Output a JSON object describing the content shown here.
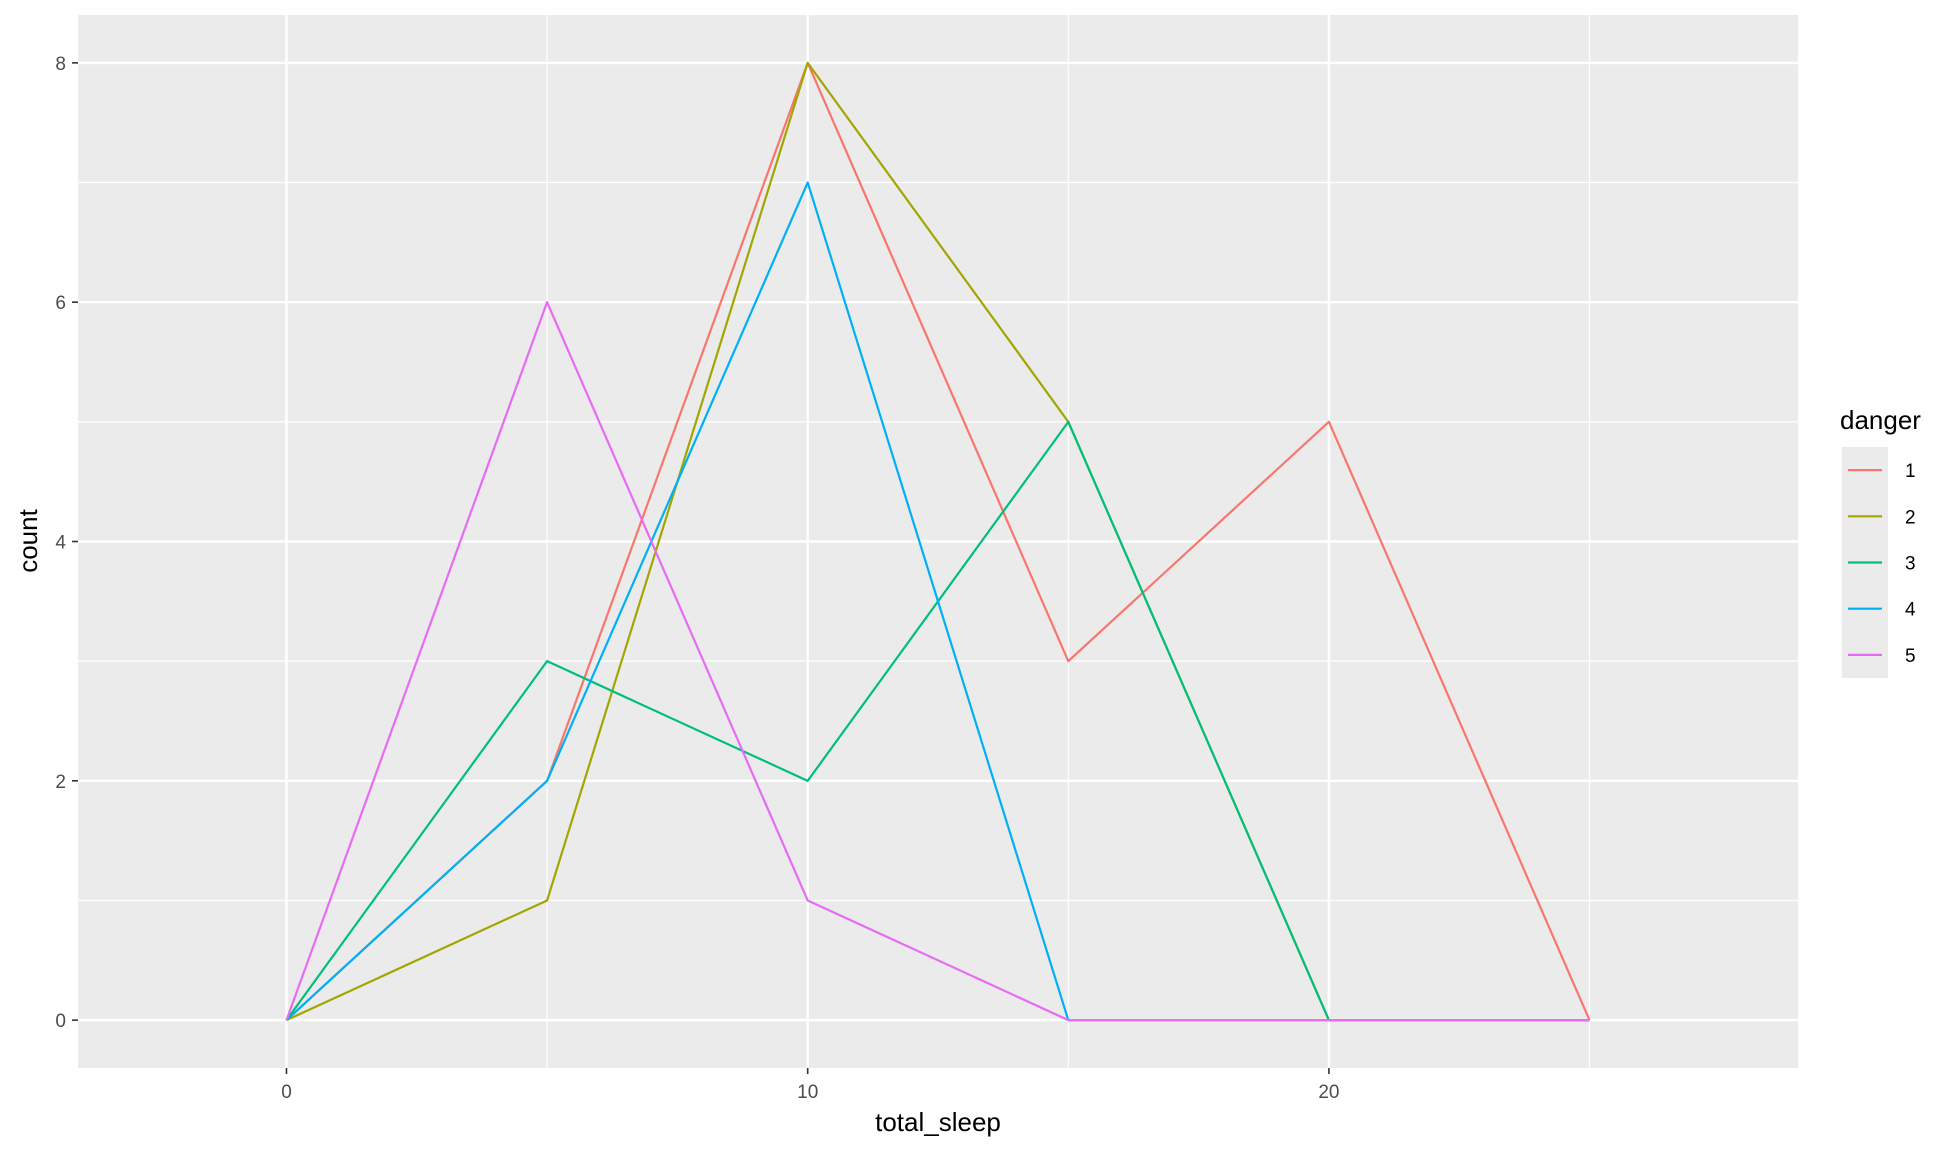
{
  "chart_data": {
    "type": "line",
    "title": "",
    "xlabel": "total_sleep",
    "ylabel": "count",
    "x": [
      0,
      5,
      10,
      15,
      20,
      25
    ],
    "xlim": [
      -4,
      29
    ],
    "ylim": [
      -0.4,
      8.4
    ],
    "xticks": [
      0,
      10,
      20
    ],
    "yticks": [
      0,
      2,
      4,
      6,
      8
    ],
    "grid": true,
    "legend": {
      "title": "danger",
      "position": "right"
    },
    "series": [
      {
        "name": "1",
        "color": "#F8766D",
        "values": [
          0,
          2,
          8,
          3,
          5,
          0
        ]
      },
      {
        "name": "2",
        "color": "#A3A500",
        "values": [
          0,
          1,
          8,
          5,
          0,
          0
        ]
      },
      {
        "name": "3",
        "color": "#00BF7D",
        "values": [
          0,
          3,
          2,
          5,
          0,
          0
        ]
      },
      {
        "name": "4",
        "color": "#00B0F6",
        "values": [
          0,
          2,
          7,
          0,
          0,
          0
        ]
      },
      {
        "name": "5",
        "color": "#E76BF3",
        "values": [
          0,
          6,
          1,
          0,
          0,
          0
        ]
      }
    ],
    "panel_background": "#EBEBEB",
    "grid_color": "#FFFFFF"
  }
}
